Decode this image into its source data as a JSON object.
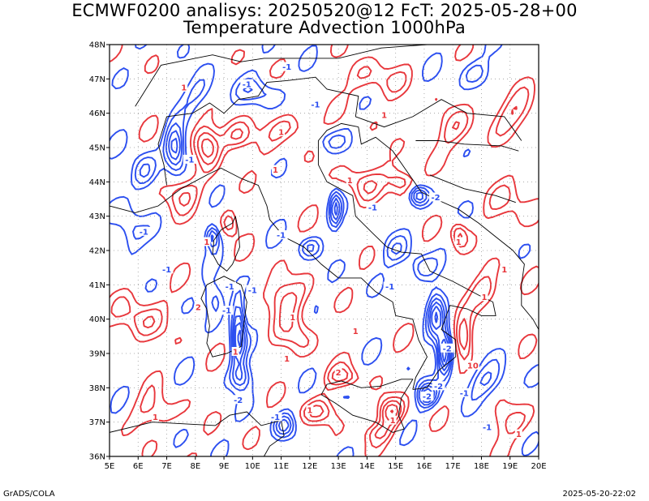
{
  "title_line1": "ECMWF0200 analisys: 20250520@12 FcT: 2025-05-28+00",
  "title_line2": "Temperature Advection 1000hPa",
  "footer_left": "GrADS/COLA",
  "footer_right": "2025-05-20-22:02",
  "map": {
    "lon_range": [
      5,
      20
    ],
    "lat_range": [
      36,
      48
    ],
    "lon_ticks": [
      "5E",
      "6E",
      "7E",
      "8E",
      "9E",
      "10E",
      "11E",
      "12E",
      "13E",
      "14E",
      "15E",
      "16E",
      "17E",
      "18E",
      "19E",
      "20E"
    ],
    "lat_ticks": [
      "36N",
      "37N",
      "38N",
      "39N",
      "40N",
      "41N",
      "42N",
      "43N",
      "44N",
      "45N",
      "46N",
      "47N",
      "48N"
    ],
    "grid": "dotted",
    "colors": {
      "positive": "#e8373c",
      "negative": "#2c4ff0",
      "coast": "#000000",
      "grid": "#999999"
    },
    "contour_labels": [
      {
        "text": "1",
        "lon": 7.6,
        "lat": 46.7,
        "sign": "pos"
      },
      {
        "text": "-1",
        "lon": 9.8,
        "lat": 46.8,
        "sign": "neg"
      },
      {
        "text": "-1",
        "lon": 11.2,
        "lat": 47.3,
        "sign": "neg"
      },
      {
        "text": "-1",
        "lon": 12.2,
        "lat": 46.2,
        "sign": "neg"
      },
      {
        "text": "1",
        "lon": 14.6,
        "lat": 45.9,
        "sign": "pos"
      },
      {
        "text": "1",
        "lon": 11.0,
        "lat": 45.4,
        "sign": "pos"
      },
      {
        "text": "-1",
        "lon": 7.8,
        "lat": 44.6,
        "sign": "neg"
      },
      {
        "text": "1",
        "lon": 10.8,
        "lat": 44.3,
        "sign": "pos"
      },
      {
        "text": "1",
        "lon": 13.4,
        "lat": 44.0,
        "sign": "pos"
      },
      {
        "text": "-2",
        "lon": 16.4,
        "lat": 43.5,
        "sign": "neg"
      },
      {
        "text": "-1",
        "lon": 14.2,
        "lat": 43.2,
        "sign": "neg"
      },
      {
        "text": "-1",
        "lon": 6.2,
        "lat": 42.5,
        "sign": "neg"
      },
      {
        "text": "-1",
        "lon": 11.0,
        "lat": 42.4,
        "sign": "neg"
      },
      {
        "text": "1",
        "lon": 8.4,
        "lat": 42.2,
        "sign": "pos"
      },
      {
        "text": "1",
        "lon": 17.2,
        "lat": 42.2,
        "sign": "pos"
      },
      {
        "text": "-1",
        "lon": 7.0,
        "lat": 41.4,
        "sign": "neg"
      },
      {
        "text": "1",
        "lon": 18.8,
        "lat": 41.4,
        "sign": "pos"
      },
      {
        "text": "-1",
        "lon": 9.2,
        "lat": 40.9,
        "sign": "neg"
      },
      {
        "text": "-1",
        "lon": 10.0,
        "lat": 40.8,
        "sign": "neg"
      },
      {
        "text": "2",
        "lon": 8.1,
        "lat": 40.3,
        "sign": "pos"
      },
      {
        "text": "-1",
        "lon": 14.8,
        "lat": 40.9,
        "sign": "neg"
      },
      {
        "text": "1",
        "lon": 18.1,
        "lat": 40.6,
        "sign": "pos"
      },
      {
        "text": "-1",
        "lon": 9.1,
        "lat": 40.2,
        "sign": "neg"
      },
      {
        "text": "1",
        "lon": 11.4,
        "lat": 40.0,
        "sign": "pos"
      },
      {
        "text": "1",
        "lon": 13.6,
        "lat": 39.6,
        "sign": "pos"
      },
      {
        "text": "-2",
        "lon": 16.8,
        "lat": 39.1,
        "sign": "neg"
      },
      {
        "text": "10",
        "lon": 17.7,
        "lat": 38.6,
        "sign": "pos"
      },
      {
        "text": "1",
        "lon": 9.4,
        "lat": 39.0,
        "sign": "pos"
      },
      {
        "text": "1",
        "lon": 11.2,
        "lat": 38.8,
        "sign": "pos"
      },
      {
        "text": "-2",
        "lon": 9.5,
        "lat": 37.6,
        "sign": "neg"
      },
      {
        "text": "2",
        "lon": 13.0,
        "lat": 38.4,
        "sign": "pos"
      },
      {
        "text": "-2",
        "lon": 16.1,
        "lat": 37.7,
        "sign": "neg"
      },
      {
        "text": "-2",
        "lon": 16.5,
        "lat": 38.0,
        "sign": "neg"
      },
      {
        "text": "1",
        "lon": 12.0,
        "lat": 37.3,
        "sign": "pos"
      },
      {
        "text": "-1",
        "lon": 10.8,
        "lat": 37.1,
        "sign": "neg"
      },
      {
        "text": "1",
        "lon": 14.9,
        "lat": 37.0,
        "sign": "pos"
      },
      {
        "text": "-1",
        "lon": 17.4,
        "lat": 37.8,
        "sign": "neg"
      },
      {
        "text": "-1",
        "lon": 18.2,
        "lat": 36.8,
        "sign": "neg"
      },
      {
        "text": "1",
        "lon": 6.6,
        "lat": 37.1,
        "sign": "pos"
      },
      {
        "text": "1",
        "lon": 19.3,
        "lat": 36.6,
        "sign": "pos"
      }
    ]
  }
}
